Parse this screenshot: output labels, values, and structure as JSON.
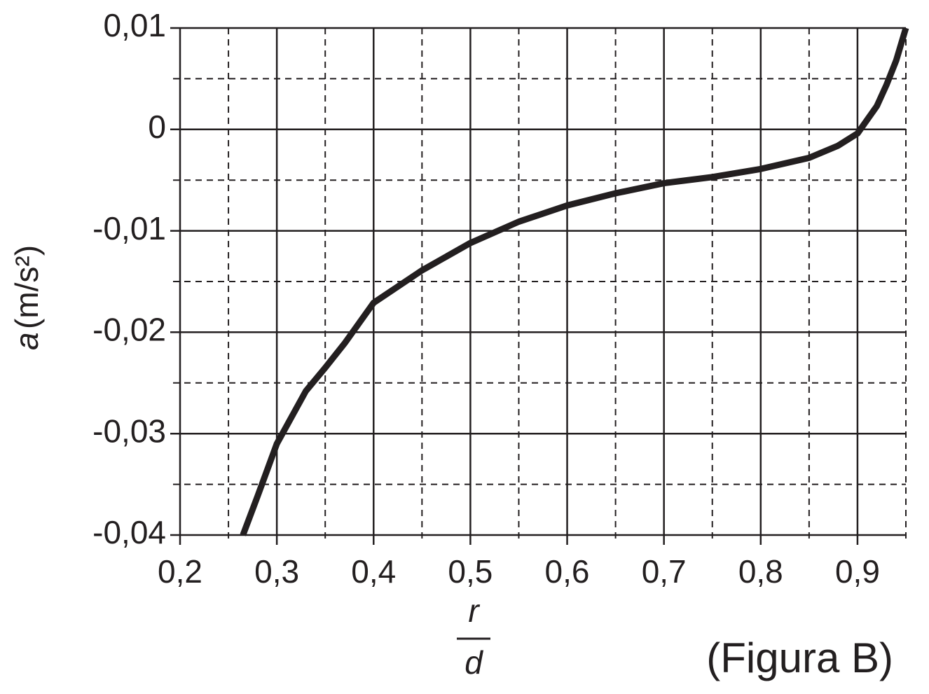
{
  "chart_data": {
    "type": "line",
    "y_label": {
      "variable": "a",
      "unit": "(m/s²)"
    },
    "x_label": {
      "numerator": "r",
      "denominator": "d"
    },
    "annotation": "(Figura B)",
    "xlim": [
      0.2,
      0.95
    ],
    "ylim": [
      -0.04,
      0.01
    ],
    "xticks": [
      {
        "value": 0.2,
        "label": "0,2"
      },
      {
        "value": 0.3,
        "label": "0,3"
      },
      {
        "value": 0.4,
        "label": "0,4"
      },
      {
        "value": 0.5,
        "label": "0,5"
      },
      {
        "value": 0.6,
        "label": "0,6"
      },
      {
        "value": 0.7,
        "label": "0,7"
      },
      {
        "value": 0.8,
        "label": "0,8"
      },
      {
        "value": 0.9,
        "label": "0,9"
      }
    ],
    "yticks": [
      {
        "value": 0.01,
        "label": "0,01"
      },
      0,
      {
        "value": -0.01,
        "label": "-0,01"
      },
      {
        "value": -0.02,
        "label": "-0,02"
      },
      {
        "value": -0.03,
        "label": "-0,03"
      },
      {
        "value": -0.04,
        "label": "-0,04"
      }
    ],
    "x_minor_ticks": [
      0.25,
      0.35,
      0.45,
      0.55,
      0.65,
      0.75,
      0.85,
      0.95
    ],
    "y_minor_ticks": [
      0.005,
      -0.005,
      -0.015,
      -0.025,
      -0.035
    ],
    "grid": true,
    "series": [
      {
        "color": "#231f20",
        "x": [
          0.265,
          0.28,
          0.3,
          0.33,
          0.35,
          0.37,
          0.4,
          0.45,
          0.5,
          0.55,
          0.6,
          0.65,
          0.7,
          0.75,
          0.8,
          0.85,
          0.88,
          0.9,
          0.92,
          0.93,
          0.94,
          0.95
        ],
        "values": [
          -0.04,
          -0.0362,
          -0.031,
          -0.0258,
          -0.0235,
          -0.0211,
          -0.0171,
          -0.0139,
          -0.0112,
          -0.0091,
          -0.0075,
          -0.0063,
          -0.0053,
          -0.0047,
          -0.0039,
          -0.0028,
          -0.0016,
          -0.0004,
          0.0023,
          0.0044,
          0.0068,
          0.01
        ]
      }
    ]
  }
}
